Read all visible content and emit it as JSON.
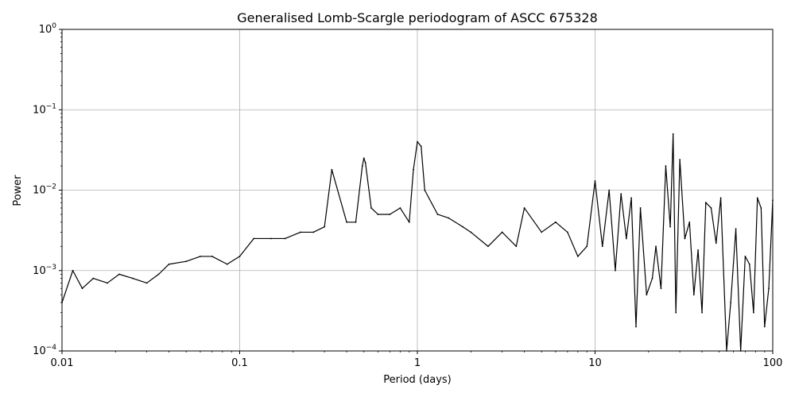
{
  "chart_data": {
    "type": "line",
    "title": "Generalised Lomb-Scargle periodogram of ASCC 675328",
    "xlabel": "Period (days)",
    "ylabel": "Power",
    "xscale": "log",
    "yscale": "log",
    "xlim": [
      0.01,
      100
    ],
    "ylim": [
      0.0001,
      1
    ],
    "grid": true,
    "x_ticks": [
      {
        "value": 0.01,
        "label": "0.01"
      },
      {
        "value": 0.1,
        "label": "0.1"
      },
      {
        "value": 1,
        "label": "1"
      },
      {
        "value": 10,
        "label": "10"
      },
      {
        "value": 100,
        "label": "100"
      }
    ],
    "y_ticks": [
      {
        "value": 0.0001,
        "base": "10",
        "exp": "−4"
      },
      {
        "value": 0.001,
        "base": "10",
        "exp": "−3"
      },
      {
        "value": 0.01,
        "base": "10",
        "exp": "−2"
      },
      {
        "value": 0.1,
        "base": "10",
        "exp": "−1"
      },
      {
        "value": 1,
        "base": "10",
        "exp": "0"
      }
    ],
    "line_color": "#000000",
    "series": [
      {
        "x": [
          0.01,
          0.0115,
          0.013,
          0.015,
          0.018,
          0.021,
          0.025,
          0.03,
          0.035,
          0.04,
          0.05,
          0.06,
          0.07,
          0.085,
          0.1,
          0.12,
          0.15,
          0.18,
          0.22,
          0.26,
          0.3,
          0.33,
          0.4,
          0.45,
          0.49,
          0.5,
          0.51,
          0.55,
          0.6,
          0.7,
          0.8,
          0.9,
          0.95,
          1.0,
          1.05,
          1.1,
          1.3,
          1.5,
          1.8,
          2.0,
          2.5,
          3.0,
          3.6,
          4.0,
          5.0,
          6.0,
          7.0,
          8.0,
          9.0,
          10.0,
          11.0,
          12.0,
          13.0,
          14.0,
          15.0,
          16.0,
          17.0,
          18.0,
          19.5,
          21.0,
          22.0,
          23.5,
          25.0,
          26.5,
          27.5,
          28.5,
          30.0,
          32.0,
          34.0,
          36.0,
          38.0,
          40.0,
          42.0,
          45.0,
          48.0,
          51.0,
          55.0,
          58.0,
          62.0,
          66.0,
          70.0,
          74.0,
          78.0,
          82.0,
          86.0,
          90.0,
          95.0,
          100.0
        ],
        "y": [
          0.0004,
          0.001,
          0.0006,
          0.0008,
          0.0007,
          0.0009,
          0.0008,
          0.0007,
          0.0009,
          0.0012,
          0.0013,
          0.0015,
          0.0015,
          0.0012,
          0.0015,
          0.0025,
          0.0025,
          0.0025,
          0.003,
          0.003,
          0.0035,
          0.018,
          0.004,
          0.004,
          0.02,
          0.025,
          0.022,
          0.006,
          0.005,
          0.005,
          0.006,
          0.004,
          0.018,
          0.04,
          0.035,
          0.01,
          0.005,
          0.0045,
          0.0035,
          0.003,
          0.002,
          0.003,
          0.002,
          0.006,
          0.003,
          0.004,
          0.003,
          0.0015,
          0.002,
          0.013,
          0.002,
          0.01,
          0.001,
          0.009,
          0.0025,
          0.008,
          0.0002,
          0.006,
          0.0005,
          0.0008,
          0.002,
          0.0006,
          0.02,
          0.0035,
          0.05,
          0.0003,
          0.024,
          0.0025,
          0.004,
          0.0005,
          0.0018,
          0.0003,
          0.007,
          0.006,
          0.0022,
          0.008,
          0.0001,
          0.0004,
          0.0033,
          0.0001,
          0.0015,
          0.0012,
          0.0003,
          0.008,
          0.006,
          0.0002,
          0.0006,
          0.0075
        ]
      }
    ]
  }
}
